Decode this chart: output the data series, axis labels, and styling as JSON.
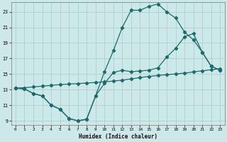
{
  "xlabel": "Humidex (Indice chaleur)",
  "bg_color": "#cde8e8",
  "grid_color": "#aecece",
  "line_color": "#1a6b6b",
  "xlim": [
    -0.5,
    23.5
  ],
  "ylim": [
    8.5,
    24.2
  ],
  "xticks": [
    0,
    1,
    2,
    3,
    4,
    5,
    6,
    7,
    8,
    9,
    10,
    11,
    12,
    13,
    14,
    15,
    16,
    17,
    18,
    19,
    20,
    21,
    22,
    23
  ],
  "yticks": [
    9,
    11,
    13,
    15,
    17,
    19,
    21,
    23
  ],
  "line1_x": [
    0,
    1,
    2,
    3,
    4,
    5,
    6,
    7,
    8,
    9,
    10,
    11,
    12,
    13,
    14,
    15,
    16,
    17,
    18,
    19,
    20,
    21,
    22,
    23
  ],
  "line1_y": [
    13.2,
    13.1,
    12.5,
    12.2,
    11.0,
    10.5,
    9.3,
    9.0,
    9.2,
    12.2,
    15.3,
    18.0,
    21.0,
    23.2,
    23.2,
    23.7,
    24.0,
    23.0,
    22.2,
    20.4,
    19.4,
    17.8,
    16.0,
    15.5
  ],
  "line2_x": [
    0,
    1,
    2,
    3,
    4,
    5,
    6,
    7,
    8,
    9,
    10,
    11,
    12,
    13,
    14,
    15,
    16,
    17,
    18,
    19,
    20,
    21,
    22,
    23
  ],
  "line2_y": [
    13.2,
    13.1,
    12.5,
    12.2,
    11.0,
    10.5,
    9.3,
    9.0,
    9.2,
    12.2,
    13.8,
    15.2,
    15.5,
    15.3,
    15.4,
    15.5,
    15.8,
    17.2,
    18.3,
    19.8,
    20.2,
    17.8,
    16.0,
    15.5
  ],
  "line3_x": [
    0,
    1,
    2,
    3,
    4,
    5,
    6,
    7,
    8,
    9,
    10,
    11,
    12,
    13,
    14,
    15,
    16,
    17,
    18,
    19,
    20,
    21,
    22,
    23
  ],
  "line3_y": [
    13.2,
    13.25,
    13.35,
    13.45,
    13.55,
    13.65,
    13.72,
    13.78,
    13.85,
    13.92,
    14.0,
    14.1,
    14.22,
    14.38,
    14.55,
    14.7,
    14.82,
    14.92,
    15.02,
    15.12,
    15.28,
    15.42,
    15.56,
    15.7
  ]
}
